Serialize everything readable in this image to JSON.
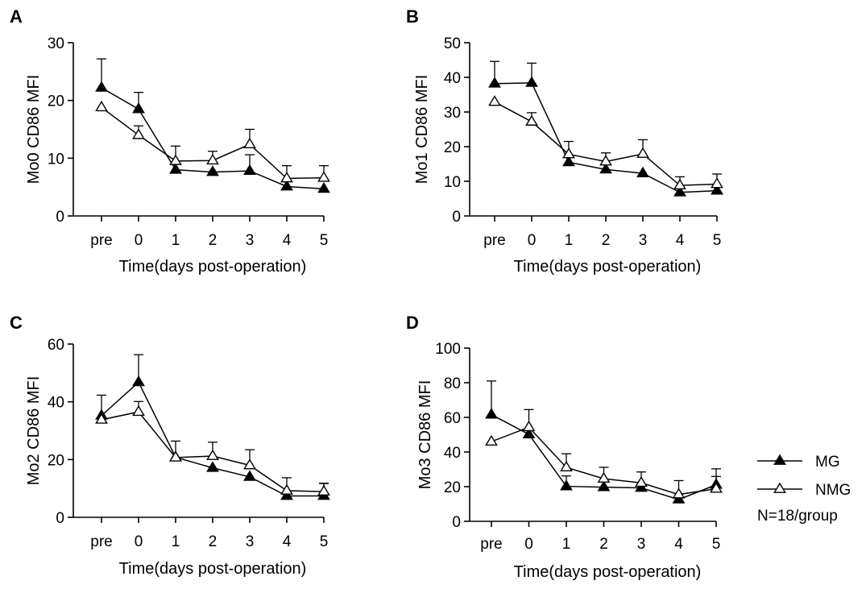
{
  "chart_data": [
    {
      "type": "line",
      "panel": "A",
      "ylabel": "Mo0 CD86 MFI",
      "xlabel": "Time(days post-operation)",
      "categories": [
        "pre",
        "0",
        "1",
        "2",
        "3",
        "4",
        "5"
      ],
      "ylim": [
        0,
        30
      ],
      "yticks": [
        0,
        10,
        20,
        30
      ],
      "series": [
        {
          "name": "MG",
          "marker": "filled-triangle",
          "values": [
            22.2,
            18.5,
            8.0,
            7.6,
            7.8,
            5.1,
            4.7
          ],
          "errors": [
            5.0,
            2.9,
            0,
            0,
            2.8,
            0,
            0
          ]
        },
        {
          "name": "NMG",
          "marker": "open-triangle",
          "values": [
            18.8,
            14.0,
            9.5,
            9.6,
            12.4,
            6.5,
            6.6
          ],
          "errors": [
            0,
            1.6,
            2.6,
            1.6,
            2.6,
            2.2,
            2.1
          ]
        }
      ]
    },
    {
      "type": "line",
      "panel": "B",
      "ylabel": "Mo1 CD86 MFI",
      "xlabel": "Time(days post-operation)",
      "categories": [
        "pre",
        "0",
        "1",
        "2",
        "3",
        "4",
        "5"
      ],
      "ylim": [
        0,
        50
      ],
      "yticks": [
        0,
        10,
        20,
        30,
        40,
        50
      ],
      "series": [
        {
          "name": "MG",
          "marker": "filled-triangle",
          "values": [
            38.2,
            38.4,
            15.5,
            13.4,
            12.3,
            6.8,
            7.3
          ],
          "errors": [
            6.4,
            5.7,
            0,
            0,
            0,
            0,
            0
          ]
        },
        {
          "name": "NMG",
          "marker": "open-triangle",
          "values": [
            32.9,
            27.2,
            17.8,
            15.7,
            17.9,
            8.8,
            9.2
          ],
          "errors": [
            0,
            2.6,
            3.7,
            2.5,
            4.1,
            2.5,
            2.9
          ]
        }
      ]
    },
    {
      "type": "line",
      "panel": "C",
      "ylabel": "Mo2 CD86 MFI",
      "xlabel": "Time(days post-operation)",
      "categories": [
        "pre",
        "0",
        "1",
        "2",
        "3",
        "4",
        "5"
      ],
      "ylim": [
        0,
        60
      ],
      "yticks": [
        0,
        20,
        40,
        60
      ],
      "series": [
        {
          "name": "MG",
          "marker": "filled-triangle",
          "values": [
            35.2,
            46.8,
            20.8,
            17.1,
            14.0,
            7.4,
            7.4
          ],
          "errors": [
            7.1,
            9.5,
            5.6,
            0,
            0,
            0,
            4.4
          ]
        },
        {
          "name": "NMG",
          "marker": "open-triangle",
          "values": [
            33.8,
            36.5,
            20.7,
            21.2,
            18.0,
            9.2,
            8.9
          ],
          "errors": [
            0,
            3.6,
            0,
            4.8,
            5.4,
            4.5,
            2.8
          ]
        }
      ]
    },
    {
      "type": "line",
      "panel": "D",
      "ylabel": "Mo3 CD86 MFI",
      "xlabel": "Time(days post-operation)",
      "categories": [
        "pre",
        "0",
        "1",
        "2",
        "3",
        "4",
        "5"
      ],
      "ylim": [
        0,
        100
      ],
      "yticks": [
        0,
        20,
        40,
        60,
        80,
        100
      ],
      "series": [
        {
          "name": "MG",
          "marker": "filled-triangle",
          "values": [
            61.6,
            50.2,
            20.2,
            19.7,
            19.3,
            12.6,
            21.1
          ],
          "errors": [
            19.4,
            0,
            6.0,
            0,
            0,
            0,
            9.2
          ]
        },
        {
          "name": "NMG",
          "marker": "open-triangle",
          "values": [
            46.0,
            54.3,
            31.1,
            24.6,
            22.2,
            15.5,
            18.8
          ],
          "errors": [
            0,
            10.2,
            7.9,
            6.6,
            6.3,
            8.0,
            7.1
          ]
        }
      ]
    }
  ],
  "legend": {
    "items": [
      {
        "label": "MG",
        "marker": "filled-triangle"
      },
      {
        "label": "NMG",
        "marker": "open-triangle"
      }
    ],
    "note": "N=18/group"
  }
}
